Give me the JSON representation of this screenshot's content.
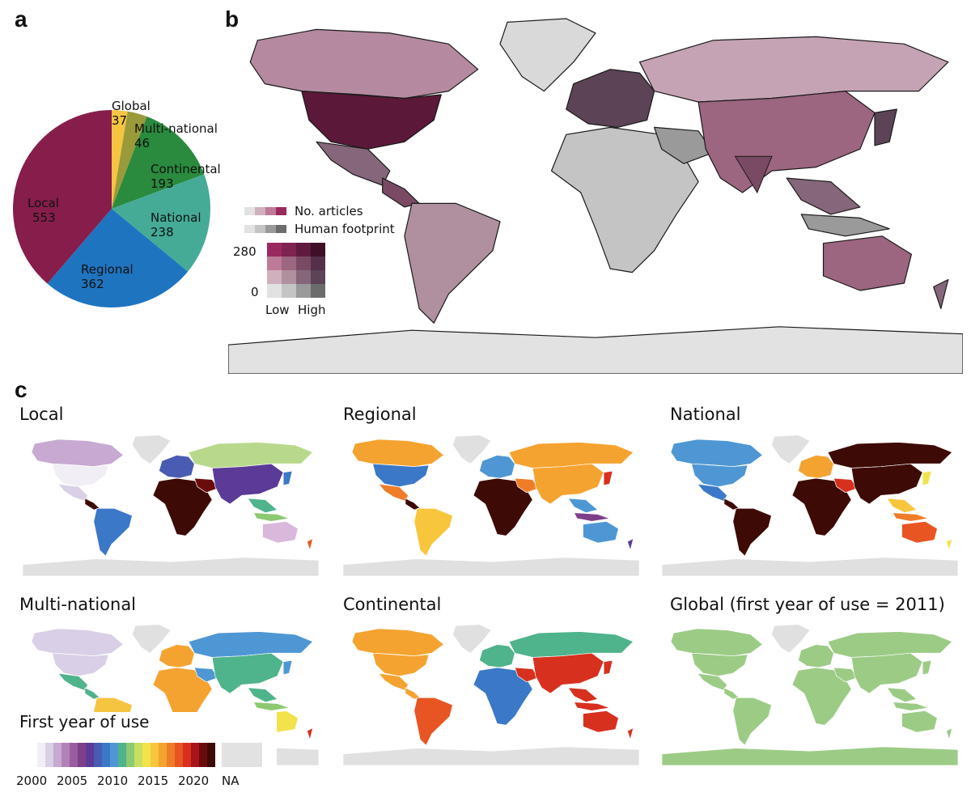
{
  "panels": {
    "a": "a",
    "b": "b",
    "c": "c"
  },
  "chart_data": [
    {
      "type": "pie",
      "panel": "a",
      "categories": [
        "Global",
        "Multi-national",
        "Continental",
        "National",
        "Regional",
        "Local"
      ],
      "values": [
        37,
        46,
        193,
        238,
        362,
        553
      ],
      "value_labels": [
        "37",
        "46",
        "193",
        "238",
        "362",
        "553"
      ],
      "colors": [
        "#f5c542",
        "#9a9a3a",
        "#2a8a3e",
        "#45ab97",
        "#1f74bf",
        "#861d4b"
      ]
    },
    {
      "type": "heatmap",
      "panel": "b",
      "legend": {
        "row1": "No. articles",
        "row2": "Human footprint",
        "y_max": "280",
        "y_min": "0",
        "x_low": "Low",
        "x_high": "High"
      },
      "bivariate_colors": [
        [
          "#e2e2e2",
          "#c4c4c4",
          "#9a9a9a",
          "#6c6c6c"
        ],
        [
          "#d0b0bd",
          "#b0909e",
          "#85667a",
          "#5c4355"
        ],
        [
          "#bd7b97",
          "#9c6580",
          "#7a4a64",
          "#55304a"
        ],
        [
          "#99295e",
          "#7e2250",
          "#611a3f",
          "#3d1027"
        ]
      ]
    },
    {
      "type": "heatmap",
      "panel": "c",
      "maps": [
        {
          "title": "Local"
        },
        {
          "title": "Regional"
        },
        {
          "title": "National"
        },
        {
          "title": "Multi-national"
        },
        {
          "title": "Continental"
        },
        {
          "title": "Global (first year of use = 2011)"
        }
      ],
      "colorbar": {
        "title": "First year of use",
        "ticks": [
          "2000",
          "2005",
          "2010",
          "2015",
          "2020"
        ],
        "na_label": "NA",
        "range": [
          2000,
          2021
        ],
        "colors": [
          "#f1eef6",
          "#d9cfe6",
          "#c7a9d1",
          "#b182b8",
          "#9b5c9f",
          "#7e3f8a",
          "#5b3b97",
          "#4a5bb3",
          "#3b78c7",
          "#4f97d4",
          "#4fb38c",
          "#8cc970",
          "#c8de62",
          "#f2e34d",
          "#f7c63c",
          "#f5a330",
          "#ef7d28",
          "#e85523",
          "#d7301f",
          "#a8141a",
          "#6b0c0c",
          "#3d0a05"
        ]
      }
    }
  ]
}
